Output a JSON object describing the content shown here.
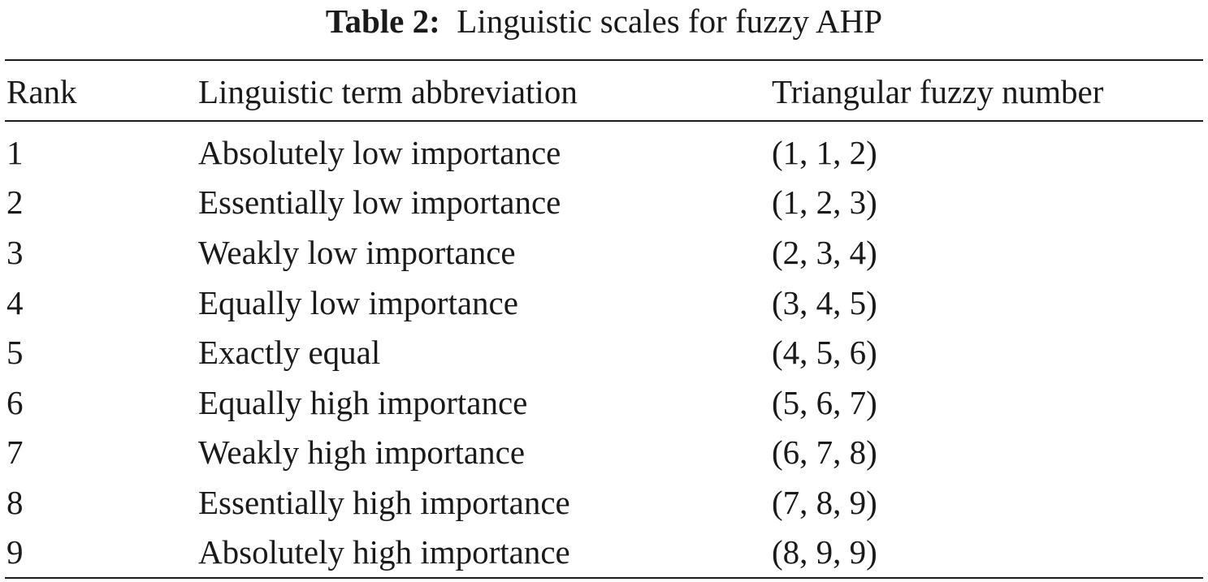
{
  "caption": {
    "label": "Table 2:",
    "text": "Linguistic scales for fuzzy AHP"
  },
  "table": {
    "headers": [
      "Rank",
      "Linguistic term abbreviation",
      "Triangular fuzzy number"
    ],
    "rows": [
      [
        "1",
        "Absolutely low importance",
        "(1, 1, 2)"
      ],
      [
        "2",
        "Essentially low importance",
        "(1, 2, 3)"
      ],
      [
        "3",
        "Weakly low importance",
        "(2, 3, 4)"
      ],
      [
        "4",
        "Equally low importance",
        "(3, 4, 5)"
      ],
      [
        "5",
        "Exactly equal",
        "(4, 5, 6)"
      ],
      [
        "6",
        "Equally high importance",
        "(5, 6, 7)"
      ],
      [
        "7",
        "Weakly high importance",
        "(6, 7, 8)"
      ],
      [
        "8",
        "Essentially high importance",
        "(7, 8, 9)"
      ],
      [
        "9",
        "Absolutely high importance",
        "(8, 9, 9)"
      ]
    ]
  }
}
